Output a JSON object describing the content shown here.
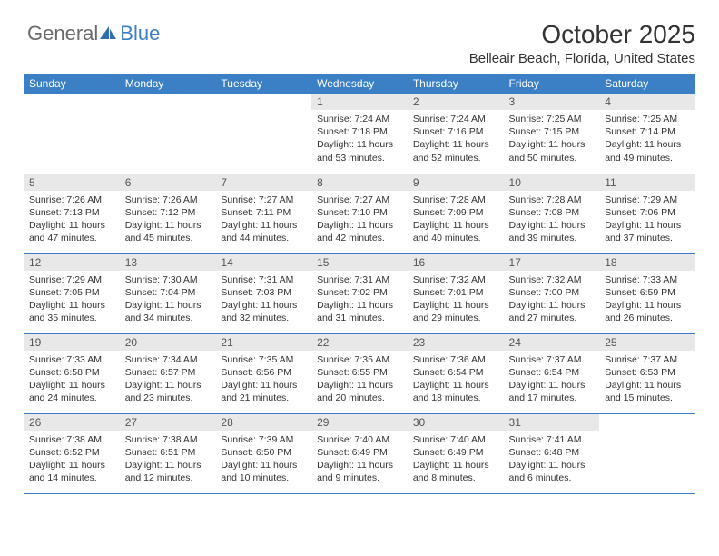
{
  "logo": {
    "word1": "General",
    "word2": "Blue",
    "icon_color": "#2f6fb0"
  },
  "header": {
    "title": "October 2025",
    "location": "Belleair Beach, Florida, United States"
  },
  "colors": {
    "header_bg": "#3b7fc4",
    "header_text": "#ffffff",
    "daynum_bg": "#e8e8e8",
    "border": "#3b7fc4"
  },
  "day_names": [
    "Sunday",
    "Monday",
    "Tuesday",
    "Wednesday",
    "Thursday",
    "Friday",
    "Saturday"
  ],
  "weeks": [
    [
      {
        "blank": true
      },
      {
        "blank": true
      },
      {
        "blank": true
      },
      {
        "n": "1",
        "sr": "7:24 AM",
        "ss": "7:18 PM",
        "dl": "11 hours and 53 minutes."
      },
      {
        "n": "2",
        "sr": "7:24 AM",
        "ss": "7:16 PM",
        "dl": "11 hours and 52 minutes."
      },
      {
        "n": "3",
        "sr": "7:25 AM",
        "ss": "7:15 PM",
        "dl": "11 hours and 50 minutes."
      },
      {
        "n": "4",
        "sr": "7:25 AM",
        "ss": "7:14 PM",
        "dl": "11 hours and 49 minutes."
      }
    ],
    [
      {
        "n": "5",
        "sr": "7:26 AM",
        "ss": "7:13 PM",
        "dl": "11 hours and 47 minutes."
      },
      {
        "n": "6",
        "sr": "7:26 AM",
        "ss": "7:12 PM",
        "dl": "11 hours and 45 minutes."
      },
      {
        "n": "7",
        "sr": "7:27 AM",
        "ss": "7:11 PM",
        "dl": "11 hours and 44 minutes."
      },
      {
        "n": "8",
        "sr": "7:27 AM",
        "ss": "7:10 PM",
        "dl": "11 hours and 42 minutes."
      },
      {
        "n": "9",
        "sr": "7:28 AM",
        "ss": "7:09 PM",
        "dl": "11 hours and 40 minutes."
      },
      {
        "n": "10",
        "sr": "7:28 AM",
        "ss": "7:08 PM",
        "dl": "11 hours and 39 minutes."
      },
      {
        "n": "11",
        "sr": "7:29 AM",
        "ss": "7:06 PM",
        "dl": "11 hours and 37 minutes."
      }
    ],
    [
      {
        "n": "12",
        "sr": "7:29 AM",
        "ss": "7:05 PM",
        "dl": "11 hours and 35 minutes."
      },
      {
        "n": "13",
        "sr": "7:30 AM",
        "ss": "7:04 PM",
        "dl": "11 hours and 34 minutes."
      },
      {
        "n": "14",
        "sr": "7:31 AM",
        "ss": "7:03 PM",
        "dl": "11 hours and 32 minutes."
      },
      {
        "n": "15",
        "sr": "7:31 AM",
        "ss": "7:02 PM",
        "dl": "11 hours and 31 minutes."
      },
      {
        "n": "16",
        "sr": "7:32 AM",
        "ss": "7:01 PM",
        "dl": "11 hours and 29 minutes."
      },
      {
        "n": "17",
        "sr": "7:32 AM",
        "ss": "7:00 PM",
        "dl": "11 hours and 27 minutes."
      },
      {
        "n": "18",
        "sr": "7:33 AM",
        "ss": "6:59 PM",
        "dl": "11 hours and 26 minutes."
      }
    ],
    [
      {
        "n": "19",
        "sr": "7:33 AM",
        "ss": "6:58 PM",
        "dl": "11 hours and 24 minutes."
      },
      {
        "n": "20",
        "sr": "7:34 AM",
        "ss": "6:57 PM",
        "dl": "11 hours and 23 minutes."
      },
      {
        "n": "21",
        "sr": "7:35 AM",
        "ss": "6:56 PM",
        "dl": "11 hours and 21 minutes."
      },
      {
        "n": "22",
        "sr": "7:35 AM",
        "ss": "6:55 PM",
        "dl": "11 hours and 20 minutes."
      },
      {
        "n": "23",
        "sr": "7:36 AM",
        "ss": "6:54 PM",
        "dl": "11 hours and 18 minutes."
      },
      {
        "n": "24",
        "sr": "7:37 AM",
        "ss": "6:54 PM",
        "dl": "11 hours and 17 minutes."
      },
      {
        "n": "25",
        "sr": "7:37 AM",
        "ss": "6:53 PM",
        "dl": "11 hours and 15 minutes."
      }
    ],
    [
      {
        "n": "26",
        "sr": "7:38 AM",
        "ss": "6:52 PM",
        "dl": "11 hours and 14 minutes."
      },
      {
        "n": "27",
        "sr": "7:38 AM",
        "ss": "6:51 PM",
        "dl": "11 hours and 12 minutes."
      },
      {
        "n": "28",
        "sr": "7:39 AM",
        "ss": "6:50 PM",
        "dl": "11 hours and 10 minutes."
      },
      {
        "n": "29",
        "sr": "7:40 AM",
        "ss": "6:49 PM",
        "dl": "11 hours and 9 minutes."
      },
      {
        "n": "30",
        "sr": "7:40 AM",
        "ss": "6:49 PM",
        "dl": "11 hours and 8 minutes."
      },
      {
        "n": "31",
        "sr": "7:41 AM",
        "ss": "6:48 PM",
        "dl": "11 hours and 6 minutes."
      },
      {
        "blank": true
      }
    ]
  ],
  "labels": {
    "sunrise": "Sunrise:",
    "sunset": "Sunset:",
    "daylight": "Daylight:"
  }
}
